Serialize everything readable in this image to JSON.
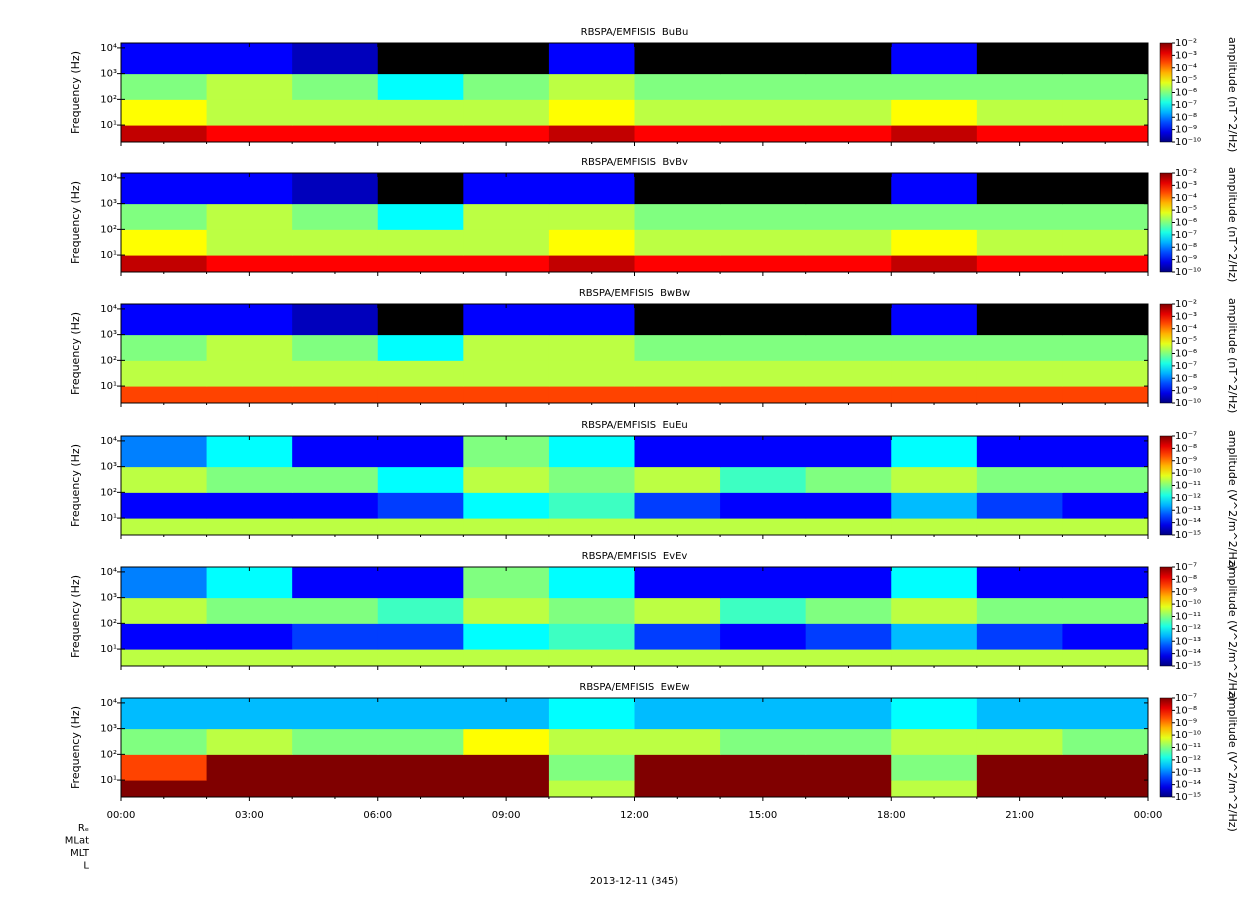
{
  "chart_data": [
    {
      "type": "heatmap",
      "title": "RBSPA/EMFISIS  BuBu",
      "ylabel": "Frequency (Hz)",
      "log_y": true,
      "ylim": [
        2.2,
        15500
      ],
      "yticks": [
        {
          "value": 10,
          "label": "10¹"
        },
        {
          "value": 100,
          "label": "10²"
        },
        {
          "value": 1000,
          "label": "10³"
        },
        {
          "value": 10000,
          "label": "10⁴"
        }
      ],
      "x_edges": [
        0,
        2,
        4,
        6,
        8,
        10,
        12,
        14,
        16,
        18,
        20,
        22,
        24
      ],
      "y_edges": [
        2.2,
        10,
        100,
        1000,
        15500
      ],
      "z": [
        [
          0.003,
          0.001,
          0.001,
          0.001,
          0.001,
          0.003,
          0.001,
          0.001,
          0.001,
          0.003,
          0.001,
          0.001
        ],
        [
          1e-05,
          3e-06,
          3e-06,
          3e-06,
          3e-06,
          1e-05,
          3e-06,
          3e-06,
          3e-06,
          1e-05,
          3e-06,
          3e-06
        ],
        [
          1e-06,
          3e-06,
          1e-06,
          1e-07,
          1e-06,
          3e-06,
          1e-06,
          1e-06,
          1e-06,
          1e-06,
          1e-06,
          1e-06
        ],
        [
          1e-09,
          1e-09,
          3e-10,
          1e-11,
          1e-11,
          1e-09,
          1e-11,
          1e-11,
          1e-11,
          1e-09,
          1e-11,
          1e-11
        ]
      ],
      "zlabel": "amplitude (nT^2/Hz)",
      "log_z": true,
      "zlim": [
        1e-10,
        0.01
      ],
      "zticks": [
        {
          "value": 0.01,
          "label": "10⁻²"
        },
        {
          "value": 0.001,
          "label": "10⁻³"
        },
        {
          "value": 0.0001,
          "label": "10⁻⁴"
        },
        {
          "value": 1e-05,
          "label": "10⁻⁵"
        },
        {
          "value": 1e-06,
          "label": "10⁻⁶"
        },
        {
          "value": 1e-07,
          "label": "10⁻⁷"
        },
        {
          "value": 1e-08,
          "label": "10⁻⁸"
        },
        {
          "value": 1e-09,
          "label": "10⁻⁹"
        },
        {
          "value": 1e-10,
          "label": "10⁻¹⁰"
        }
      ]
    },
    {
      "type": "heatmap",
      "title": "RBSPA/EMFISIS  BvBv",
      "ylabel": "Frequency (Hz)",
      "log_y": true,
      "ylim": [
        2.2,
        15500
      ],
      "yticks": [
        {
          "value": 10,
          "label": "10¹"
        },
        {
          "value": 100,
          "label": "10²"
        },
        {
          "value": 1000,
          "label": "10³"
        },
        {
          "value": 10000,
          "label": "10⁴"
        }
      ],
      "x_edges": [
        0,
        2,
        4,
        6,
        8,
        10,
        12,
        14,
        16,
        18,
        20,
        22,
        24
      ],
      "y_edges": [
        2.2,
        10,
        100,
        1000,
        15500
      ],
      "z": [
        [
          0.003,
          0.001,
          0.001,
          0.001,
          0.001,
          0.003,
          0.001,
          0.001,
          0.001,
          0.003,
          0.001,
          0.001
        ],
        [
          1e-05,
          3e-06,
          3e-06,
          3e-06,
          3e-06,
          1e-05,
          3e-06,
          3e-06,
          3e-06,
          1e-05,
          3e-06,
          3e-06
        ],
        [
          1e-06,
          3e-06,
          1e-06,
          1e-07,
          3e-06,
          3e-06,
          1e-06,
          1e-06,
          1e-06,
          1e-06,
          1e-06,
          1e-06
        ],
        [
          1e-09,
          1e-09,
          3e-10,
          1e-11,
          1e-09,
          1e-09,
          1e-11,
          1e-11,
          1e-11,
          1e-09,
          1e-11,
          1e-11
        ]
      ],
      "zlabel": "amplitude (nT^2/Hz)",
      "log_z": true,
      "zlim": [
        1e-10,
        0.01
      ],
      "zticks": [
        {
          "value": 0.01,
          "label": "10⁻²"
        },
        {
          "value": 0.001,
          "label": "10⁻³"
        },
        {
          "value": 0.0001,
          "label": "10⁻⁴"
        },
        {
          "value": 1e-05,
          "label": "10⁻⁵"
        },
        {
          "value": 1e-06,
          "label": "10⁻⁶"
        },
        {
          "value": 1e-07,
          "label": "10⁻⁷"
        },
        {
          "value": 1e-08,
          "label": "10⁻⁸"
        },
        {
          "value": 1e-09,
          "label": "10⁻⁹"
        },
        {
          "value": 1e-10,
          "label": "10⁻¹⁰"
        }
      ]
    },
    {
      "type": "heatmap",
      "title": "RBSPA/EMFISIS  BwBw",
      "ylabel": "Frequency (Hz)",
      "log_y": true,
      "ylim": [
        2.2,
        15500
      ],
      "yticks": [
        {
          "value": 10,
          "label": "10¹"
        },
        {
          "value": 100,
          "label": "10²"
        },
        {
          "value": 1000,
          "label": "10³"
        },
        {
          "value": 10000,
          "label": "10⁴"
        }
      ],
      "x_edges": [
        0,
        2,
        4,
        6,
        8,
        10,
        12,
        14,
        16,
        18,
        20,
        22,
        24
      ],
      "y_edges": [
        2.2,
        10,
        100,
        1000,
        15500
      ],
      "z": [
        [
          0.0003,
          0.0003,
          0.0003,
          0.0003,
          0.0003,
          0.0003,
          0.0003,
          0.0003,
          0.0003,
          0.0003,
          0.0003,
          0.0003
        ],
        [
          3e-06,
          3e-06,
          3e-06,
          3e-06,
          3e-06,
          3e-06,
          3e-06,
          3e-06,
          3e-06,
          3e-06,
          3e-06,
          3e-06
        ],
        [
          1e-06,
          3e-06,
          1e-06,
          1e-07,
          3e-06,
          3e-06,
          1e-06,
          1e-06,
          1e-06,
          1e-06,
          1e-06,
          1e-06
        ],
        [
          1e-09,
          1e-09,
          3e-10,
          1e-11,
          1e-09,
          1e-09,
          1e-11,
          1e-11,
          1e-11,
          1e-09,
          1e-11,
          1e-11
        ]
      ],
      "zlabel": "amplitude (nT^2/Hz)",
      "log_z": true,
      "zlim": [
        1e-10,
        0.01
      ],
      "zticks": [
        {
          "value": 0.01,
          "label": "10⁻²"
        },
        {
          "value": 0.001,
          "label": "10⁻³"
        },
        {
          "value": 0.0001,
          "label": "10⁻⁴"
        },
        {
          "value": 1e-05,
          "label": "10⁻⁵"
        },
        {
          "value": 1e-06,
          "label": "10⁻⁶"
        },
        {
          "value": 1e-07,
          "label": "10⁻⁷"
        },
        {
          "value": 1e-08,
          "label": "10⁻⁸"
        },
        {
          "value": 1e-09,
          "label": "10⁻⁹"
        },
        {
          "value": 1e-10,
          "label": "10⁻¹⁰"
        }
      ]
    },
    {
      "type": "heatmap",
      "title": "RBSPA/EMFISIS  EuEu",
      "ylabel": "Frequency (Hz)",
      "log_y": true,
      "ylim": [
        2.2,
        15500
      ],
      "yticks": [
        {
          "value": 10,
          "label": "10¹"
        },
        {
          "value": 100,
          "label": "10²"
        },
        {
          "value": 1000,
          "label": "10³"
        },
        {
          "value": 10000,
          "label": "10⁴"
        }
      ],
      "x_edges": [
        0,
        2,
        4,
        6,
        8,
        10,
        12,
        14,
        16,
        18,
        20,
        22,
        24
      ],
      "y_edges": [
        2.2,
        10,
        100,
        1000,
        15500
      ],
      "z": [
        [
          3e-11,
          3e-11,
          3e-11,
          3e-11,
          3e-11,
          3e-11,
          3e-11,
          3e-11,
          3e-11,
          3e-11,
          3e-11,
          3e-11
        ],
        [
          1e-14,
          1e-14,
          1e-14,
          3e-14,
          1e-12,
          3e-12,
          3e-14,
          1e-14,
          1e-14,
          3e-13,
          3e-14,
          1e-14
        ],
        [
          3e-11,
          1e-11,
          1e-11,
          1e-12,
          3e-11,
          1e-11,
          3e-11,
          3e-12,
          1e-11,
          3e-11,
          1e-11,
          1e-11
        ],
        [
          1e-13,
          1e-12,
          1e-14,
          1e-14,
          1e-11,
          1e-12,
          1e-14,
          1e-14,
          1e-14,
          1e-12,
          1e-14,
          1e-14
        ]
      ],
      "zlabel": "amplitude (V^2/m^2/Hz)",
      "log_z": true,
      "zlim": [
        1e-15,
        1e-07
      ],
      "zticks": [
        {
          "value": 1e-07,
          "label": "10⁻⁷"
        },
        {
          "value": 1e-08,
          "label": "10⁻⁸"
        },
        {
          "value": 1e-09,
          "label": "10⁻⁹"
        },
        {
          "value": 1e-10,
          "label": "10⁻¹⁰"
        },
        {
          "value": 1e-11,
          "label": "10⁻¹¹"
        },
        {
          "value": 1e-12,
          "label": "10⁻¹²"
        },
        {
          "value": 1e-13,
          "label": "10⁻¹³"
        },
        {
          "value": 1e-14,
          "label": "10⁻¹⁴"
        },
        {
          "value": 1e-15,
          "label": "10⁻¹⁵"
        }
      ]
    },
    {
      "type": "heatmap",
      "title": "RBSPA/EMFISIS  EvEv",
      "ylabel": "Frequency (Hz)",
      "log_y": true,
      "ylim": [
        2.2,
        15500
      ],
      "yticks": [
        {
          "value": 10,
          "label": "10¹"
        },
        {
          "value": 100,
          "label": "10²"
        },
        {
          "value": 1000,
          "label": "10³"
        },
        {
          "value": 10000,
          "label": "10⁴"
        }
      ],
      "x_edges": [
        0,
        2,
        4,
        6,
        8,
        10,
        12,
        14,
        16,
        18,
        20,
        22,
        24
      ],
      "y_edges": [
        2.2,
        10,
        100,
        1000,
        15500
      ],
      "z": [
        [
          3e-11,
          3e-11,
          3e-11,
          3e-11,
          3e-11,
          3e-11,
          3e-11,
          3e-11,
          3e-11,
          3e-11,
          3e-11,
          3e-11
        ],
        [
          1e-14,
          1e-14,
          3e-14,
          3e-14,
          1e-12,
          3e-12,
          3e-14,
          1e-14,
          3e-14,
          3e-13,
          3e-14,
          1e-14
        ],
        [
          3e-11,
          1e-11,
          1e-11,
          3e-12,
          3e-11,
          1e-11,
          3e-11,
          3e-12,
          1e-11,
          3e-11,
          1e-11,
          1e-11
        ],
        [
          1e-13,
          1e-12,
          1e-14,
          1e-14,
          1e-11,
          1e-12,
          1e-14,
          1e-14,
          1e-14,
          1e-12,
          1e-14,
          1e-14
        ]
      ],
      "zlabel": "amplitude (V^2/m^2/Hz)",
      "log_z": true,
      "zlim": [
        1e-15,
        1e-07
      ],
      "zticks": [
        {
          "value": 1e-07,
          "label": "10⁻⁷"
        },
        {
          "value": 1e-08,
          "label": "10⁻⁸"
        },
        {
          "value": 1e-09,
          "label": "10⁻⁹"
        },
        {
          "value": 1e-10,
          "label": "10⁻¹⁰"
        },
        {
          "value": 1e-11,
          "label": "10⁻¹¹"
        },
        {
          "value": 1e-12,
          "label": "10⁻¹²"
        },
        {
          "value": 1e-13,
          "label": "10⁻¹³"
        },
        {
          "value": 1e-14,
          "label": "10⁻¹⁴"
        },
        {
          "value": 1e-15,
          "label": "10⁻¹⁵"
        }
      ]
    },
    {
      "type": "heatmap",
      "title": "RBSPA/EMFISIS  EwEw",
      "ylabel": "Frequency (Hz)",
      "log_y": true,
      "ylim": [
        2.2,
        15500
      ],
      "yticks": [
        {
          "value": 10,
          "label": "10¹"
        },
        {
          "value": 100,
          "label": "10²"
        },
        {
          "value": 1000,
          "label": "10³"
        },
        {
          "value": 10000,
          "label": "10⁴"
        }
      ],
      "x_edges": [
        0,
        2,
        4,
        6,
        8,
        10,
        12,
        14,
        16,
        18,
        20,
        22,
        24
      ],
      "y_edges": [
        2.2,
        10,
        100,
        1000,
        15500
      ],
      "z": [
        [
          1e-07,
          1e-07,
          1e-07,
          1e-07,
          1e-07,
          3e-11,
          1e-07,
          1e-07,
          1e-07,
          3e-11,
          1e-07,
          1e-07
        ],
        [
          3e-09,
          1e-07,
          1e-07,
          1e-07,
          1e-07,
          1e-11,
          1e-07,
          1e-07,
          1e-07,
          1e-11,
          1e-07,
          1e-07
        ],
        [
          1e-11,
          3e-11,
          1e-11,
          1e-11,
          1e-10,
          3e-11,
          3e-11,
          1e-11,
          1e-11,
          3e-11,
          3e-11,
          1e-11
        ],
        [
          3e-13,
          3e-13,
          3e-13,
          3e-13,
          3e-13,
          1e-12,
          3e-13,
          3e-13,
          3e-13,
          1e-12,
          3e-13,
          3e-13
        ]
      ],
      "zlabel": "amplitude (V^2/m^2/Hz)",
      "log_z": true,
      "zlim": [
        1e-15,
        1e-07
      ],
      "zticks": [
        {
          "value": 1e-07,
          "label": "10⁻⁷"
        },
        {
          "value": 1e-08,
          "label": "10⁻⁸"
        },
        {
          "value": 1e-09,
          "label": "10⁻⁹"
        },
        {
          "value": 1e-10,
          "label": "10⁻¹⁰"
        },
        {
          "value": 1e-11,
          "label": "10⁻¹¹"
        },
        {
          "value": 1e-12,
          "label": "10⁻¹²"
        },
        {
          "value": 1e-13,
          "label": "10⁻¹³"
        },
        {
          "value": 1e-14,
          "label": "10⁻¹⁴"
        },
        {
          "value": 1e-15,
          "label": "10⁻¹⁵"
        }
      ],
      "xlim": [
        0,
        24
      ],
      "xticks": [
        {
          "value": 0,
          "label": "00:00"
        },
        {
          "value": 3,
          "label": "03:00"
        },
        {
          "value": 6,
          "label": "06:00"
        },
        {
          "value": 9,
          "label": "09:00"
        },
        {
          "value": 12,
          "label": "12:00"
        },
        {
          "value": 15,
          "label": "15:00"
        },
        {
          "value": 18,
          "label": "18:00"
        },
        {
          "value": 21,
          "label": "21:00"
        },
        {
          "value": 24,
          "label": "00:00"
        }
      ],
      "ephemeris_labels": [
        "Rₑ",
        "MLat",
        "MLT",
        "L"
      ],
      "xlabel": "2013-12-11 (345)"
    }
  ]
}
